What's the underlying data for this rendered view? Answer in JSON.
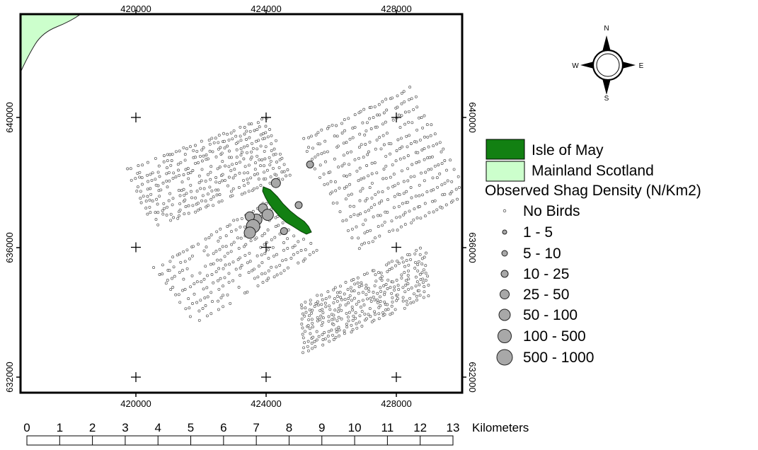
{
  "map": {
    "x_ticks": [
      "420000",
      "424000",
      "428000"
    ],
    "y_ticks": [
      "640000",
      "636000",
      "632000"
    ],
    "island_color": "#128012",
    "mainland_color": "#ccffcc"
  },
  "compass": {
    "n": "N",
    "s": "S",
    "e": "E",
    "w": "W"
  },
  "legend": {
    "isle_of_may": "Isle of May",
    "mainland_scotland": "Mainland Scotland",
    "density_title": "Observed Shag Density (N/Km2)",
    "classes": [
      {
        "label": "No Birds",
        "icon": "tiny-circle"
      },
      {
        "label": "1 - 5",
        "icon": "circle"
      },
      {
        "label": "5 - 10",
        "icon": "circle"
      },
      {
        "label": "10 - 25",
        "icon": "circle"
      },
      {
        "label": "25 - 50",
        "icon": "circle"
      },
      {
        "label": "50 - 100",
        "icon": "circle"
      },
      {
        "label": "100 - 500",
        "icon": "circle"
      },
      {
        "label": "500 - 1000",
        "icon": "circle"
      }
    ]
  },
  "scale_bar": {
    "labels": [
      "0",
      "1",
      "2",
      "3",
      "4",
      "5",
      "6",
      "7",
      "8",
      "9",
      "10",
      "11",
      "12",
      "13"
    ],
    "unit": "Kilometers"
  },
  "observations": [
    {
      "easting": 424300,
      "northing": 637980,
      "density_class": 4
    },
    {
      "easting": 425350,
      "northing": 638550,
      "density_class": 3
    },
    {
      "easting": 425000,
      "northing": 637300,
      "density_class": 3
    },
    {
      "easting": 423900,
      "northing": 637200,
      "density_class": 4
    },
    {
      "easting": 424050,
      "northing": 637000,
      "density_class": 5
    },
    {
      "easting": 423700,
      "northing": 636850,
      "density_class": 5
    },
    {
      "easting": 423500,
      "northing": 636950,
      "density_class": 4
    },
    {
      "easting": 423600,
      "northing": 636650,
      "density_class": 6
    },
    {
      "easting": 423500,
      "northing": 636450,
      "density_class": 5
    },
    {
      "easting": 424550,
      "northing": 636500,
      "density_class": 3
    }
  ]
}
